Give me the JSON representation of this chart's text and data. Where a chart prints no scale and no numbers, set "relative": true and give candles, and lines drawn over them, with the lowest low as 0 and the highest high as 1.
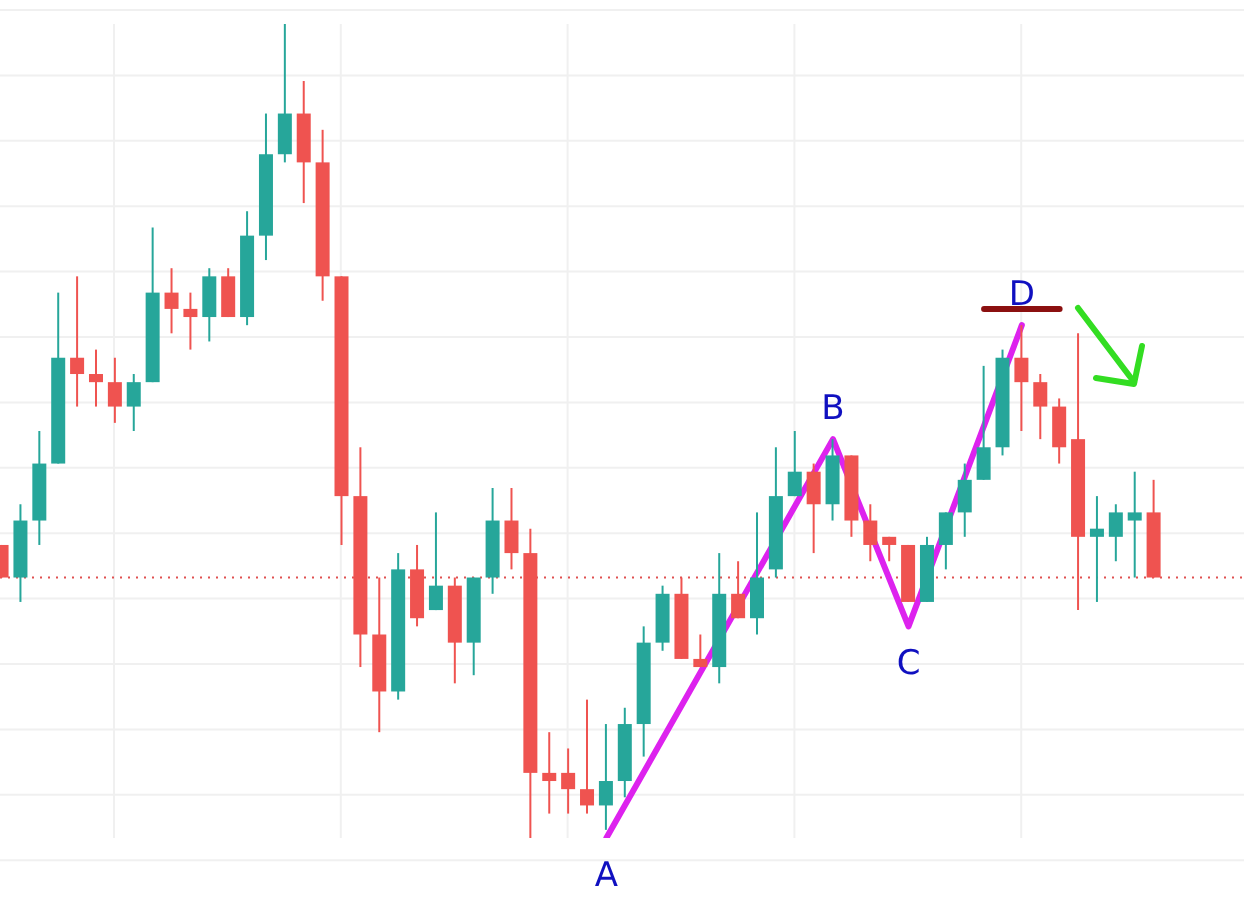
{
  "chart_data": {
    "type": "candlestick",
    "relative": true,
    "grid": true,
    "categories": [
      null,
      null,
      null,
      null,
      null,
      null,
      null,
      null,
      null,
      null,
      null,
      null,
      null,
      null,
      null,
      null,
      null,
      null,
      null,
      null,
      null,
      null,
      null,
      null,
      null,
      null,
      null,
      null,
      null,
      null,
      null,
      null,
      null,
      null,
      null,
      null,
      null,
      null,
      null,
      null,
      null,
      null,
      null,
      null,
      null,
      null,
      null,
      null,
      null,
      null,
      null,
      null,
      null,
      null,
      null,
      null,
      null,
      null,
      null,
      null,
      null,
      null,
      null,
      null,
      null,
      null,
      null
    ],
    "ohlc": [
      [
        0.36,
        0.36,
        0.32,
        0.32
      ],
      [
        0.32,
        0.41,
        0.29,
        0.39
      ],
      [
        0.39,
        0.5,
        0.36,
        0.46
      ],
      [
        0.46,
        0.67,
        0.46,
        0.59
      ],
      [
        0.59,
        0.69,
        0.53,
        0.57
      ],
      [
        0.57,
        0.6,
        0.53,
        0.56
      ],
      [
        0.56,
        0.59,
        0.51,
        0.53
      ],
      [
        0.53,
        0.57,
        0.5,
        0.56
      ],
      [
        0.56,
        0.75,
        0.56,
        0.67
      ],
      [
        0.67,
        0.7,
        0.62,
        0.65
      ],
      [
        0.65,
        0.67,
        0.6,
        0.64
      ],
      [
        0.64,
        0.7,
        0.61,
        0.69
      ],
      [
        0.69,
        0.7,
        0.64,
        0.64
      ],
      [
        0.64,
        0.77,
        0.63,
        0.74
      ],
      [
        0.74,
        0.89,
        0.71,
        0.84
      ],
      [
        0.84,
        1,
        0.83,
        0.89
      ],
      [
        0.89,
        0.93,
        0.78,
        0.83
      ],
      [
        0.83,
        0.87,
        0.66,
        0.69
      ],
      [
        0.69,
        0.69,
        0.36,
        0.42
      ],
      [
        0.42,
        0.48,
        0.21,
        0.25
      ],
      [
        0.25,
        0.32,
        0.13,
        0.18
      ],
      [
        0.18,
        0.35,
        0.17,
        0.33
      ],
      [
        0.33,
        0.36,
        0.26,
        0.27
      ],
      [
        0.28,
        0.4,
        0.28,
        0.31
      ],
      [
        0.31,
        0.32,
        0.19,
        0.24
      ],
      [
        0.24,
        0.32,
        0.2,
        0.32
      ],
      [
        0.32,
        0.43,
        0.3,
        0.39
      ],
      [
        0.39,
        0.43,
        0.33,
        0.35
      ],
      [
        0.35,
        0.38,
        0,
        0.08
      ],
      [
        0.08,
        0.13,
        0.03,
        0.07
      ],
      [
        0.08,
        0.11,
        0.03,
        0.06
      ],
      [
        0.06,
        0.17,
        0.03,
        0.04
      ],
      [
        0.04,
        0.14,
        0.01,
        0.07
      ],
      [
        0.07,
        0.16,
        0.05,
        0.14
      ],
      [
        0.14,
        0.26,
        0.1,
        0.24
      ],
      [
        0.24,
        0.31,
        0.23,
        0.3
      ],
      [
        0.3,
        0.32,
        0.22,
        0.22
      ],
      [
        0.22,
        0.25,
        0.21,
        0.21
      ],
      [
        0.21,
        0.35,
        0.19,
        0.3
      ],
      [
        0.3,
        0.34,
        0.27,
        0.27
      ],
      [
        0.27,
        0.4,
        0.25,
        0.32
      ],
      [
        0.33,
        0.48,
        0.32,
        0.42
      ],
      [
        0.42,
        0.5,
        0.42,
        0.45
      ],
      [
        0.45,
        0.46,
        0.35,
        0.41
      ],
      [
        0.41,
        0.49,
        0.39,
        0.47
      ],
      [
        0.47,
        0.47,
        0.37,
        0.39
      ],
      [
        0.39,
        0.41,
        0.34,
        0.36
      ],
      [
        0.37,
        0.37,
        0.34,
        0.36
      ],
      [
        0.36,
        0.36,
        0.29,
        0.29
      ],
      [
        0.29,
        0.37,
        0.29,
        0.36
      ],
      [
        0.36,
        0.4,
        0.33,
        0.4
      ],
      [
        0.4,
        0.46,
        0.37,
        0.44
      ],
      [
        0.44,
        0.58,
        0.44,
        0.48
      ],
      [
        0.48,
        0.6,
        0.47,
        0.59
      ],
      [
        0.59,
        0.63,
        0.5,
        0.56
      ],
      [
        0.56,
        0.57,
        0.49,
        0.53
      ],
      [
        0.53,
        0.54,
        0.46,
        0.48
      ],
      [
        0.49,
        0.62,
        0.28,
        0.37
      ],
      [
        0.37,
        0.42,
        0.29,
        0.38
      ],
      [
        0.37,
        0.41,
        0.34,
        0.4
      ],
      [
        0.39,
        0.45,
        0.32,
        0.4
      ],
      [
        0.4,
        0.44,
        0.32,
        0.32
      ],
      null,
      null,
      null,
      null,
      null
    ],
    "colors": [
      "#ef5350",
      "#26a69a",
      "#26a69a",
      "#26a69a",
      "#ef5350",
      "#ef5350",
      "#ef5350",
      "#26a69a",
      "#26a69a",
      "#ef5350",
      "#ef5350",
      "#26a69a",
      "#ef5350",
      "#26a69a",
      "#26a69a",
      "#26a69a",
      "#ef5350",
      "#ef5350",
      "#ef5350",
      "#ef5350",
      "#ef5350",
      "#26a69a",
      "#ef5350",
      "#26a69a",
      "#ef5350",
      "#26a69a",
      "#26a69a",
      "#ef5350",
      "#ef5350",
      "#ef5350",
      "#ef5350",
      "#ef5350",
      "#26a69a",
      "#26a69a",
      "#26a69a",
      "#26a69a",
      "#ef5350",
      "#ef5350",
      "#26a69a",
      "#ef5350",
      "#26a69a",
      "#26a69a",
      "#26a69a",
      "#ef5350",
      "#26a69a",
      "#ef5350",
      "#ef5350",
      "#ef5350",
      "#ef5350",
      "#26a69a",
      "#26a69a",
      "#26a69a",
      "#26a69a",
      "#26a69a",
      "#ef5350",
      "#ef5350",
      "#ef5350",
      "#ef5350",
      "#26a69a",
      "#26a69a",
      "#26a69a",
      "#ef5350",
      null,
      null,
      null,
      null,
      null
    ],
    "series": [
      {
        "type": "line",
        "color": "#dd22ee",
        "values": [
          null,
          null,
          null,
          null,
          null,
          null,
          null,
          null,
          null,
          null,
          null,
          null,
          null,
          null,
          null,
          null,
          null,
          null,
          null,
          null,
          null,
          null,
          null,
          null,
          null,
          null,
          null,
          null,
          null,
          null,
          null,
          null,
          0,
          null,
          null,
          null,
          null,
          null,
          null,
          null,
          null,
          null,
          null,
          null,
          0.49,
          null,
          null,
          null,
          0.26,
          null,
          null,
          null,
          null,
          null,
          0.63,
          null,
          null,
          null,
          null,
          null,
          null,
          null,
          null,
          null,
          null,
          null,
          null
        ]
      },
      {
        "type": "line",
        "color": "#8b1010",
        "values": [
          null,
          null,
          null,
          null,
          null,
          null,
          null,
          null,
          null,
          null,
          null,
          null,
          null,
          null,
          null,
          null,
          null,
          null,
          null,
          null,
          null,
          null,
          null,
          null,
          null,
          null,
          null,
          null,
          null,
          null,
          null,
          null,
          null,
          null,
          null,
          null,
          null,
          null,
          null,
          null,
          null,
          null,
          null,
          null,
          null,
          null,
          null,
          null,
          null,
          null,
          null,
          null,
          0.65,
          null,
          null,
          null,
          0.65,
          null,
          null,
          null,
          null,
          null,
          null,
          null,
          null,
          null,
          null
        ]
      }
    ],
    "ref_lines": [
      {
        "axis": "y",
        "value": 0.32,
        "color": "#e05050",
        "line_style": "dotted"
      }
    ],
    "annotations": [
      "A",
      "B",
      "C",
      "D"
    ]
  }
}
